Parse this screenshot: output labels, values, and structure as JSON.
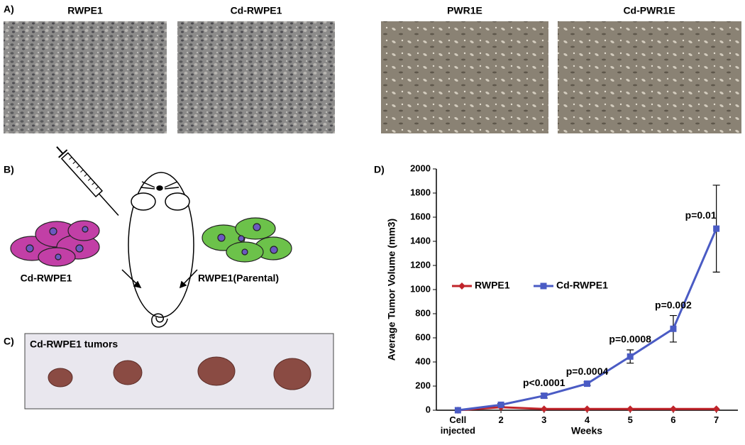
{
  "panels": {
    "a": {
      "label": "A)",
      "images": [
        "RWPE1",
        "Cd-RWPE1",
        "PWR1E",
        "Cd-PWR1E"
      ]
    },
    "b": {
      "label": "B)",
      "left_cells": "Cd-RWPE1",
      "right_cells": "RWPE1(Parental)"
    },
    "c": {
      "label": "C)",
      "title": "Cd-RWPE1 tumors"
    },
    "d": {
      "label": "D)"
    }
  },
  "chart_data": {
    "type": "line",
    "x_label": "Weeks",
    "y_label": "Average Tumor Volume  (mm3)",
    "categories": [
      "Cell injected",
      "2",
      "3",
      "4",
      "5",
      "6",
      "7"
    ],
    "series": [
      {
        "name": "RWPE1",
        "color": "#c0242a",
        "marker": "diamond",
        "values": [
          0,
          25,
          10,
          10,
          10,
          10,
          10
        ]
      },
      {
        "name": "Cd-RWPE1",
        "color": "#4a5bc4",
        "marker": "square",
        "values": [
          0,
          45,
          120,
          220,
          445,
          675,
          1505
        ],
        "errors": [
          0,
          10,
          20,
          15,
          55,
          110,
          360
        ]
      }
    ],
    "p_values": [
      null,
      null,
      "p<0.0001",
      "p=0.0004",
      "p=0.0008",
      "p=0.002",
      "p=0.01"
    ],
    "ylim": [
      0,
      2000
    ],
    "yticks": [
      0,
      200,
      400,
      600,
      800,
      1000,
      1200,
      1400,
      1600,
      1800,
      2000
    ]
  }
}
